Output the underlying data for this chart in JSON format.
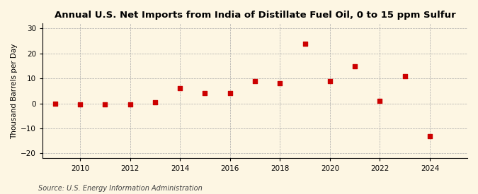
{
  "title": "Annual U.S. Net Imports from India of Distillate Fuel Oil, 0 to 15 ppm Sulfur",
  "ylabel": "Thousand Barrels per Day",
  "source": "Source: U.S. Energy Information Administration",
  "years": [
    2009,
    2010,
    2011,
    2012,
    2013,
    2014,
    2015,
    2016,
    2017,
    2018,
    2019,
    2020,
    2021,
    2022,
    2023,
    2024
  ],
  "values": [
    0.0,
    -0.5,
    -0.5,
    -0.5,
    0.5,
    6.0,
    4.0,
    4.0,
    9.0,
    8.0,
    24.0,
    9.0,
    15.0,
    1.0,
    11.0,
    -13.0
  ],
  "ylim": [
    -22,
    32
  ],
  "yticks": [
    -20,
    -10,
    0,
    10,
    20,
    30
  ],
  "xlim": [
    2008.5,
    2025.5
  ],
  "xticks": [
    2010,
    2012,
    2014,
    2016,
    2018,
    2020,
    2022,
    2024
  ],
  "marker_color": "#cc0000",
  "marker": "s",
  "marker_size": 4,
  "background_color": "#fdf6e3",
  "grid_color": "#aaaaaa",
  "title_fontsize": 9.5,
  "label_fontsize": 7.5,
  "tick_fontsize": 7.5,
  "source_fontsize": 7
}
